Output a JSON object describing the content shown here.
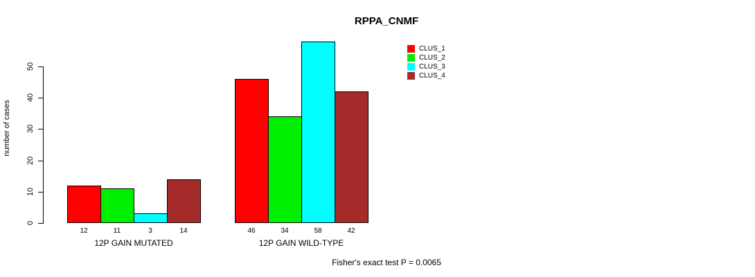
{
  "chart_data": {
    "type": "bar",
    "title": "RPPA_CNMF",
    "ylabel": "number of cases",
    "xlabel": "",
    "ylim": [
      0,
      58
    ],
    "yticks": [
      0,
      10,
      20,
      30,
      40,
      50
    ],
    "grid": false,
    "legend_position": "top-right",
    "categories": [
      "12P GAIN MUTATED",
      "12P GAIN WILD-TYPE"
    ],
    "series": [
      {
        "name": "CLUS_1",
        "color": "#ff0000",
        "values": [
          12,
          46
        ]
      },
      {
        "name": "CLUS_2",
        "color": "#00ee00",
        "values": [
          11,
          34
        ]
      },
      {
        "name": "CLUS_3",
        "color": "#00ffff",
        "values": [
          3,
          58
        ]
      },
      {
        "name": "CLUS_4",
        "color": "#a52a2a",
        "values": [
          14,
          42
        ]
      }
    ],
    "bar_value_labels": [
      [
        12,
        11,
        3,
        14
      ],
      [
        46,
        34,
        58,
        42
      ]
    ],
    "annotation": "Fisher's exact test P = 0.0065"
  }
}
